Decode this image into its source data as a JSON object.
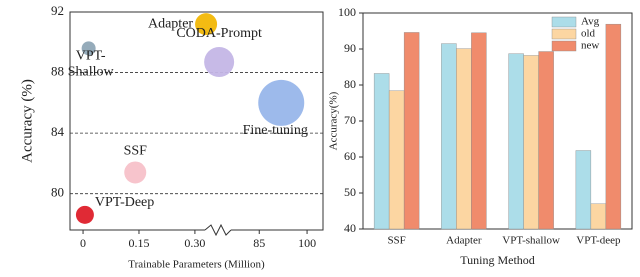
{
  "chart_data": [
    {
      "type": "bubble",
      "xlabel": "Trainable Parameters (Million)",
      "ylabel": "Accuracy (%)",
      "x_segments": [
        [
          -0.035,
          0.37
        ],
        [
          73,
          105
        ]
      ],
      "xticks": [
        0,
        0.15,
        {
          "value": 0.3,
          "label": "0.30"
        },
        85,
        100
      ],
      "ylim": [
        77.6,
        92
      ],
      "yticks": [
        80,
        84,
        88,
        92
      ],
      "grid": true,
      "points": [
        {
          "name": "VPT-\nShallow",
          "x": 0.015,
          "y": 89.6,
          "size": 7,
          "color": "#8fa6b6"
        },
        {
          "name": "Adapter",
          "x": 0.33,
          "y": 91.2,
          "size": 11,
          "color": "#f2b705"
        },
        {
          "name": "CODA-Prompt",
          "x": 0.365,
          "y": 88.7,
          "size": 15,
          "color": "#c4b6e6"
        },
        {
          "name": "Fine-tuning",
          "x": 91.9,
          "y": 86.0,
          "size": 23,
          "color": "#98b6ea"
        },
        {
          "name": "SSF",
          "x": 0.14,
          "y": 81.4,
          "size": 11,
          "color": "#f7c1c9"
        },
        {
          "name": "VPT-Deep",
          "x": 0.005,
          "y": 78.6,
          "size": 9,
          "color": "#de1f2a"
        }
      ]
    },
    {
      "type": "bar",
      "xlabel": "Tuning Method",
      "ylabel": "Accuracy(%)",
      "categories": [
        "SSF",
        "Adapter",
        "VPT-shallow",
        "VPT-deep"
      ],
      "ylim": [
        40,
        100
      ],
      "yticks": [
        40,
        50,
        60,
        70,
        80,
        90,
        100
      ],
      "legend": "upper-right",
      "series": [
        {
          "name": "Avg",
          "color": "#acdde9",
          "values": [
            83.2,
            91.5,
            88.7,
            61.8
          ]
        },
        {
          "name": "old",
          "color": "#fcd6a2",
          "values": [
            78.4,
            90.1,
            88.2,
            47.0
          ]
        },
        {
          "name": "new",
          "color": "#f08b6c",
          "values": [
            94.6,
            94.5,
            89.3,
            96.9
          ]
        }
      ]
    }
  ]
}
